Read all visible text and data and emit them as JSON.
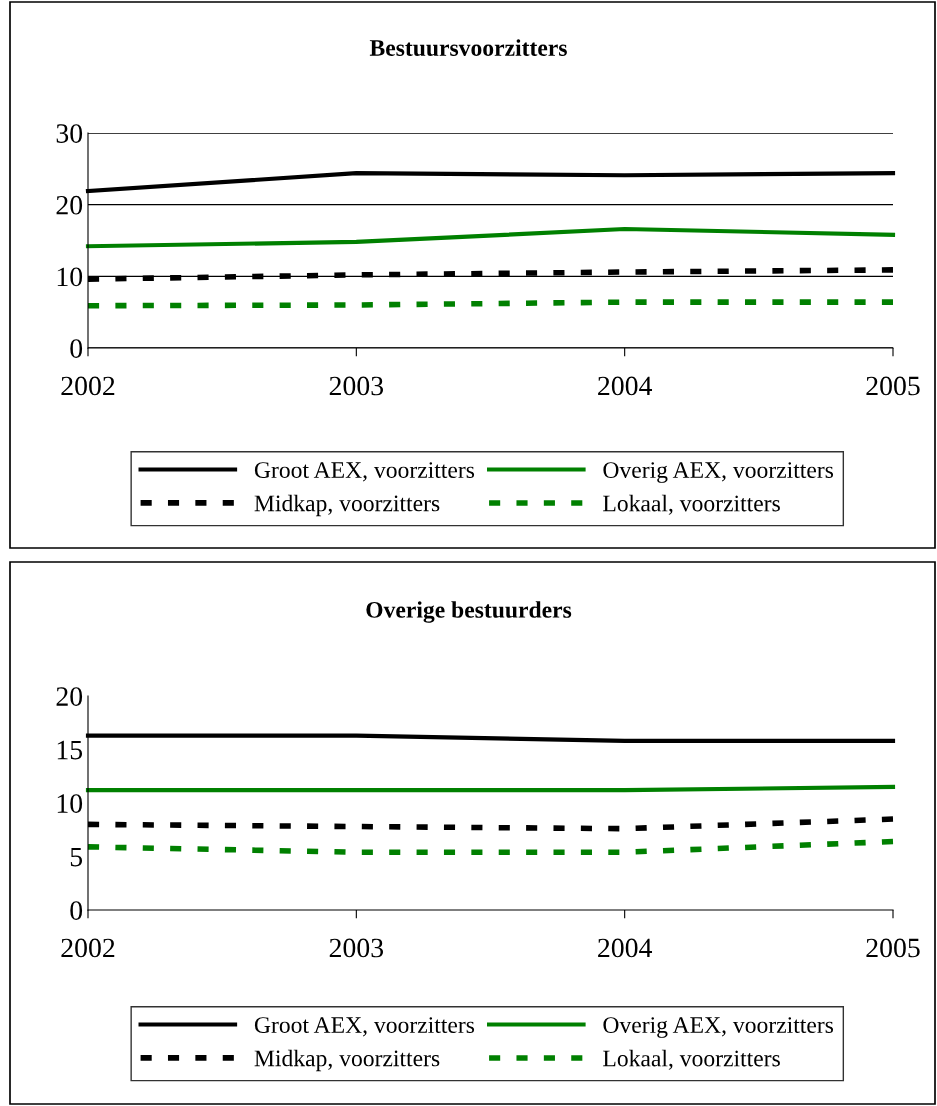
{
  "chart_data": [
    {
      "type": "line",
      "title": "Bestuursvoorzitters",
      "x": [
        2002,
        2003,
        2004,
        2005
      ],
      "xlim": [
        2002,
        2005
      ],
      "xticks": [
        2002,
        2003,
        2004,
        2005
      ],
      "ylim": [
        0,
        30
      ],
      "yticks": [
        0,
        10,
        20,
        30
      ],
      "grid": "y",
      "legend": "bottom",
      "marker": "none",
      "series": [
        {
          "name": "Groot AEX, voorzitters",
          "color": "#000000",
          "line_style": "solid",
          "values": [
            21.9,
            24.4,
            24.1,
            24.4
          ]
        },
        {
          "name": "Overig AEX, voorzitters",
          "color": "#008000",
          "line_style": "solid",
          "values": [
            14.2,
            14.8,
            16.6,
            15.8
          ]
        },
        {
          "name": "Midkap, voorzitters",
          "color": "#000000",
          "line_style": "dashed",
          "values": [
            9.6,
            10.2,
            10.6,
            10.9
          ]
        },
        {
          "name": "Lokaal, voorzitters",
          "color": "#008000",
          "line_style": "dashed",
          "values": [
            5.9,
            6.0,
            6.4,
            6.4
          ]
        }
      ]
    },
    {
      "type": "line",
      "title": "Overige bestuurders",
      "x": [
        2002,
        2003,
        2004,
        2005
      ],
      "xlim": [
        2002,
        2005
      ],
      "xticks": [
        2002,
        2003,
        2004,
        2005
      ],
      "ylim": [
        0,
        20
      ],
      "yticks": [
        0,
        5,
        10,
        15,
        20
      ],
      "grid": false,
      "legend": "bottom",
      "marker": "none",
      "series": [
        {
          "name": "Groot AEX, voorzitters",
          "color": "#000000",
          "line_style": "solid",
          "values": [
            16.3,
            16.3,
            15.8,
            15.8
          ]
        },
        {
          "name": "Overig AEX, voorzitters",
          "color": "#008000",
          "line_style": "solid",
          "values": [
            11.2,
            11.2,
            11.2,
            11.5
          ]
        },
        {
          "name": "Midkap, voorzitters",
          "color": "#000000",
          "line_style": "dashed",
          "values": [
            8.0,
            7.8,
            7.6,
            8.5
          ]
        },
        {
          "name": "Lokaal, voorzitters",
          "color": "#008000",
          "line_style": "dashed",
          "values": [
            5.9,
            5.4,
            5.4,
            6.4
          ]
        }
      ]
    }
  ]
}
